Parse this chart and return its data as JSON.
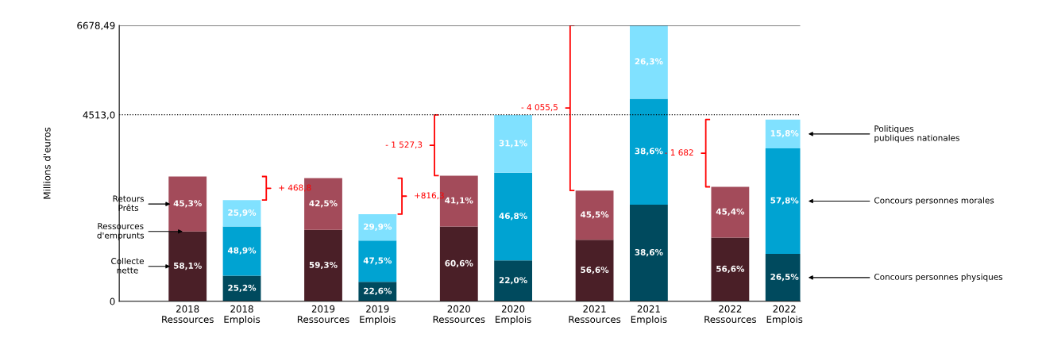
{
  "chart_data": {
    "type": "bar",
    "stacked": true,
    "ylabel": "Millions d'euros",
    "categories": [
      "2018\nRessources",
      "2018\nEmplois",
      "2019\nRessources",
      "2019\nEmplois",
      "2020\nRessources",
      "2020\nEmplois",
      "2021\nRessources",
      "2021\nEmplois",
      "2022\nRessources",
      "2022\nEmplois"
    ],
    "series": [
      {
        "name": "Collecte\nnette",
        "color": "#4a1f27",
        "values": [
          1690,
          null,
          1730,
          null,
          1810,
          null,
          1490,
          null,
          1540,
          null
        ]
      },
      {
        "name": "Concours personnes physiques",
        "color": "#004a5e",
        "values": [
          null,
          620,
          null,
          470,
          null,
          990,
          null,
          2340,
          null,
          1150
        ]
      },
      {
        "name": "Retours\nPrêts",
        "color": "#a34b5a",
        "values": [
          1330,
          null,
          1250,
          null,
          1230,
          null,
          1190,
          null,
          1230,
          null
        ]
      },
      {
        "name": "Concours personnes morales",
        "color": "#00a3d2",
        "values": [
          null,
          1190,
          null,
          1000,
          null,
          2120,
          null,
          2560,
          null,
          2550
        ]
      },
      {
        "name": "Politiques\npubliques nationales",
        "color": "#80e1ff",
        "values": [
          null,
          640,
          null,
          640,
          null,
          1400,
          null,
          1780,
          null,
          700
        ]
      }
    ],
    "ylim": [
      0,
      6678.49
    ],
    "yticks": [
      0,
      {
        "value": 4513.0,
        "label": "4513,0"
      },
      {
        "value": 6678.49,
        "label": "6678,49"
      }
    ],
    "ref_lines": [
      {
        "axis": "y",
        "value": 4513.0,
        "line_style": "dotted",
        "color": "#000000"
      },
      {
        "axis": "y",
        "value": 6678.49,
        "line_style": "solid",
        "color": "#000000"
      }
    ],
    "annotations": [
      "+ 468,8",
      "+816,3",
      "- 1 527,3",
      "- 4 055,5",
      "- 1 682",
      {
        "text": "Ressources\nd'emprunts",
        "x": "2018\nRessources",
        "y": 1690
      },
      "58,1%",
      "59,3%",
      "60,6%",
      "56,6%",
      "56,6%",
      "25,2%",
      "22,6%",
      "22,0%",
      "38,6%",
      "26,5%",
      "45,3%",
      "42,5%",
      "41,1%",
      "45,5%",
      "45,4%",
      "48,9%",
      "47,5%",
      "46,8%",
      "38,6%",
      "57,8%",
      "25,9%",
      "29,9%",
      "31,1%",
      "26,3%",
      "15,8%"
    ]
  }
}
